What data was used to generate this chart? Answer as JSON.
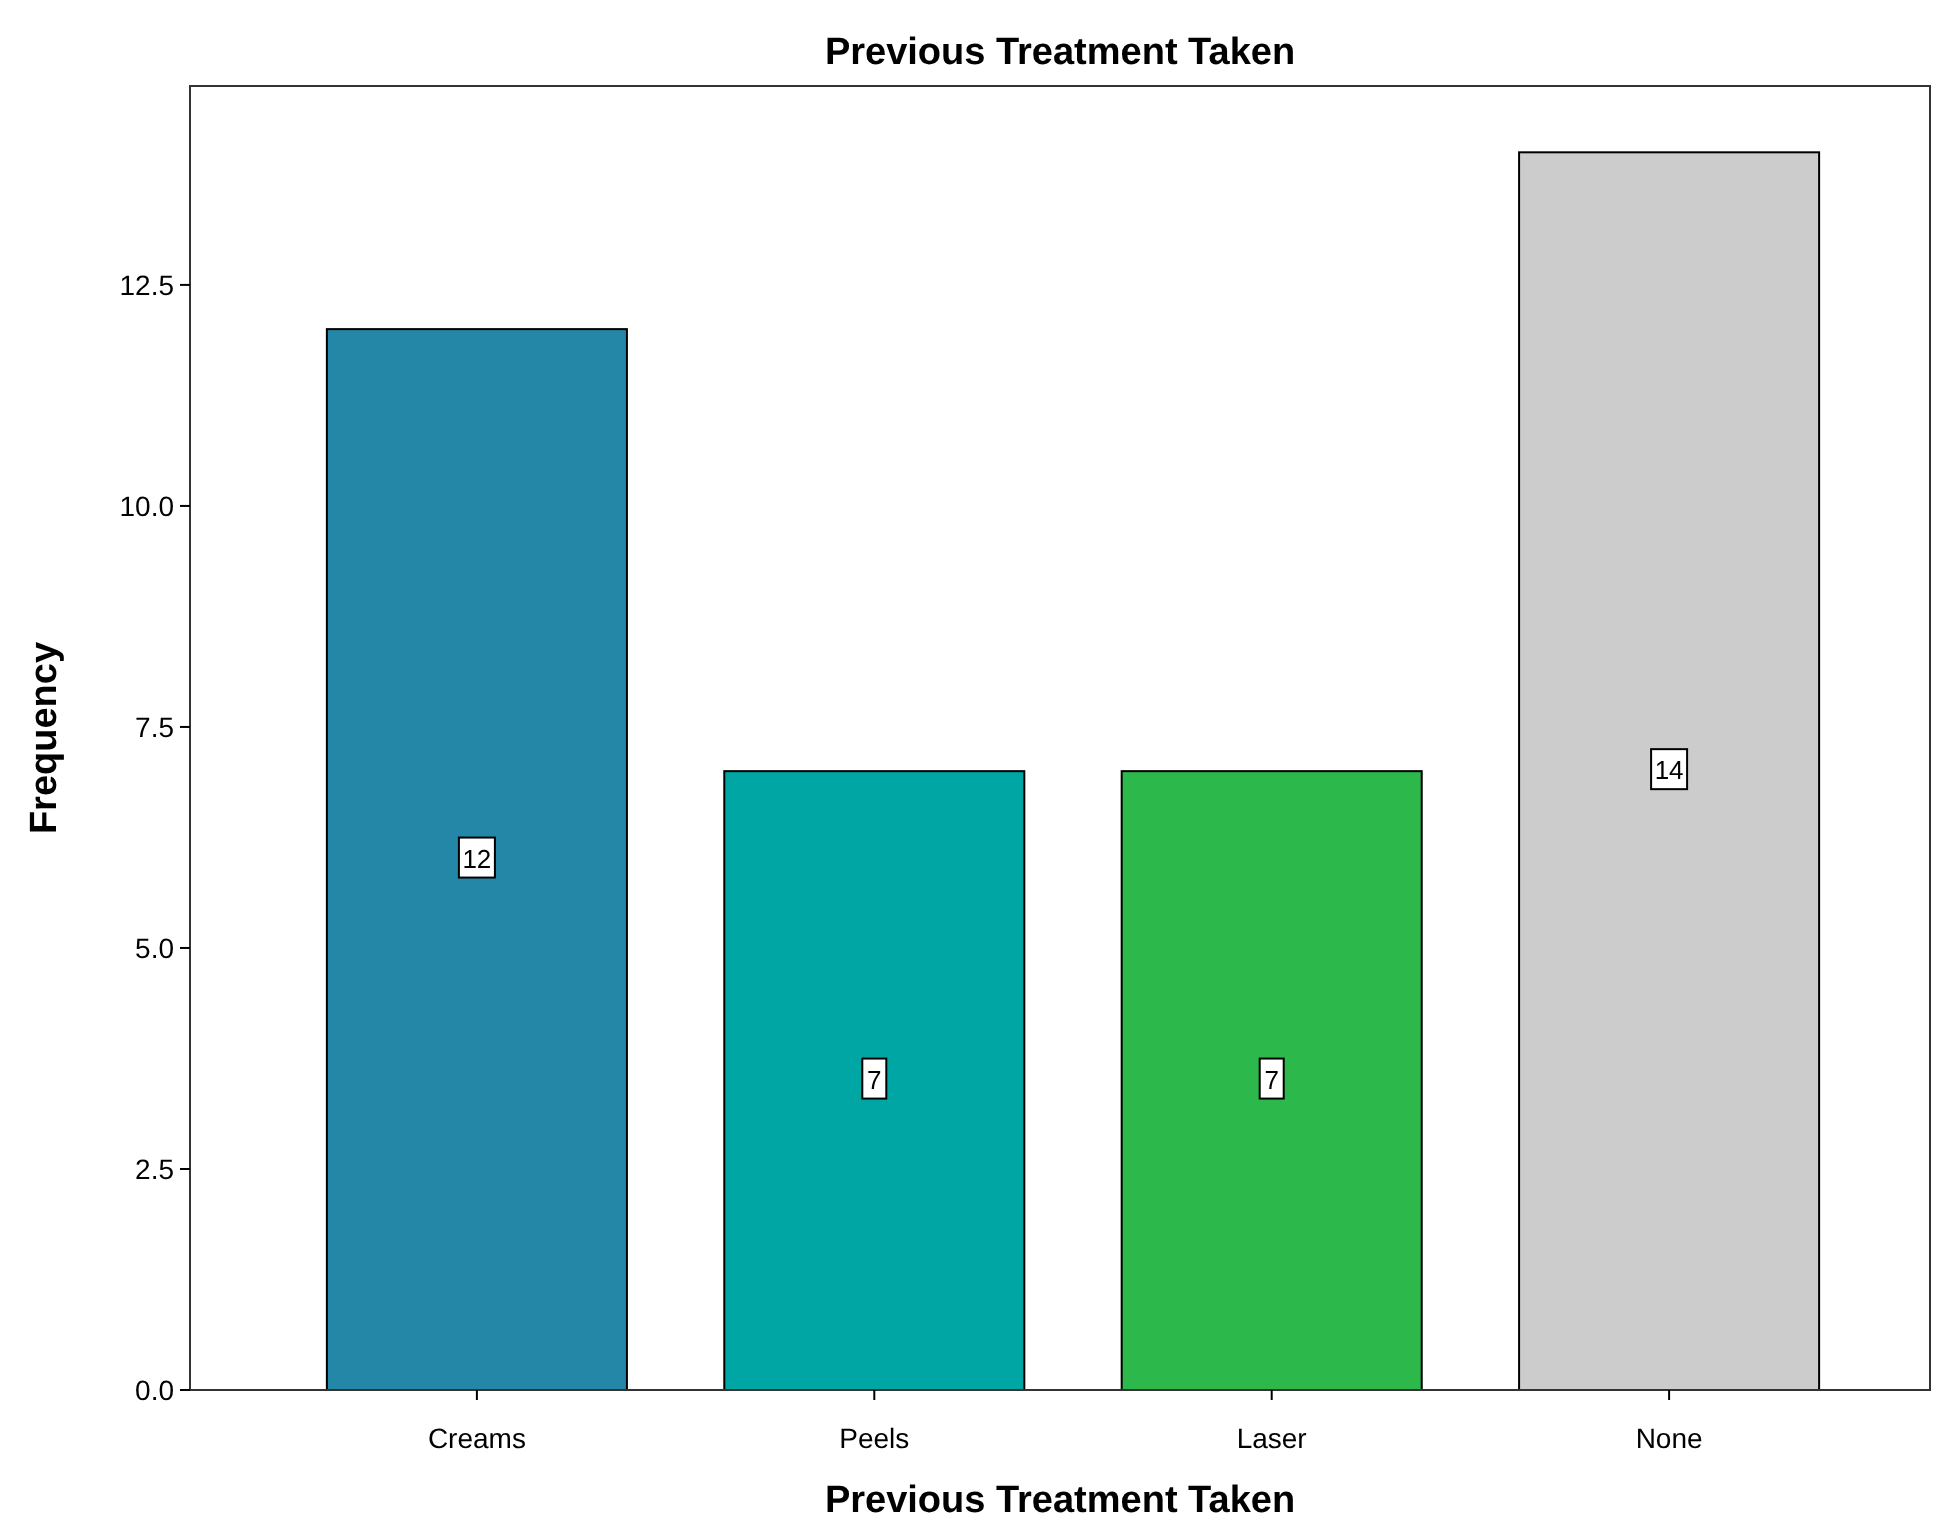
{
  "chart_data": {
    "type": "bar",
    "title": "Previous Treatment Taken",
    "xlabel": "Previous Treatment Taken",
    "ylabel": "Frequency",
    "categories": [
      "Creams",
      "Peels",
      "Laser",
      "None"
    ],
    "values": [
      12,
      7,
      7,
      14
    ],
    "colors": [
      "#2487a8",
      "#00a6a3",
      "#2db84b",
      "#cccccc"
    ],
    "ylim": [
      0,
      14.75
    ],
    "yticks": [
      {
        "value": 0,
        "label": "0.0"
      },
      2.5,
      {
        "value": 5,
        "label": "5.0"
      },
      7.5,
      {
        "value": 10,
        "label": "10.0"
      },
      12.5
    ],
    "data_labels": true,
    "grid": false
  }
}
